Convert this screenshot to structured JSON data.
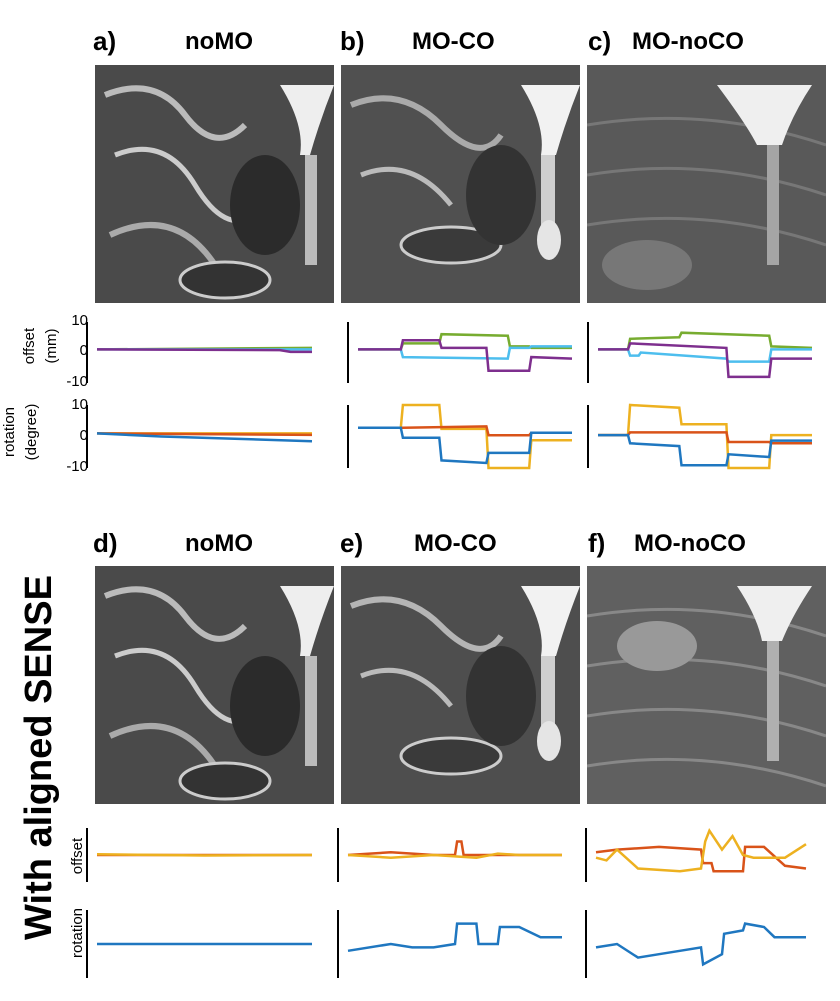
{
  "side_label": "With aligned SENSE",
  "panels": [
    {
      "label": "a)",
      "title": "noMO"
    },
    {
      "label": "b)",
      "title": "MO-CO"
    },
    {
      "label": "c)",
      "title": "MO-noCO"
    },
    {
      "label": "d)",
      "title": "noMO"
    },
    {
      "label": "e)",
      "title": "MO-CO"
    },
    {
      "label": "f)",
      "title": "MO-noCO"
    }
  ],
  "axes": {
    "offset_label": "offset",
    "offset_unit": "(mm)",
    "rotation_label": "rotation",
    "rotation_unit": "(degree)",
    "offset_ticks": [
      "10",
      "0",
      "-10"
    ],
    "rotation_ticks": [
      "10",
      "0",
      "-10"
    ]
  },
  "colors": {
    "blue": "#1f77c0",
    "orange": "#d95319",
    "yellow": "#edb120",
    "purple": "#7e2f8e",
    "green": "#77ac30",
    "cyan": "#4dbeee"
  },
  "chart_data": [
    {
      "type": "line",
      "panel": "a",
      "ylabel": "offset (mm)",
      "ylim": [
        -10,
        10
      ],
      "series": [
        {
          "name": "offset-1",
          "color": "#77ac30",
          "x": [
            0,
            1
          ],
          "y": [
            1,
            1.5
          ]
        },
        {
          "name": "offset-2",
          "color": "#4dbeee",
          "x": [
            0,
            1
          ],
          "y": [
            1,
            1
          ]
        },
        {
          "name": "offset-3",
          "color": "#7e2f8e",
          "x": [
            0,
            0.85,
            0.9,
            1
          ],
          "y": [
            1,
            0.8,
            0.2,
            0.2
          ]
        }
      ]
    },
    {
      "type": "line",
      "panel": "b",
      "ylabel": "offset (mm)",
      "ylim": [
        -10,
        10
      ],
      "series": [
        {
          "name": "offset-1",
          "color": "#77ac30",
          "x": [
            0,
            0.2,
            0.21,
            0.38,
            0.39,
            0.7,
            0.71,
            0.8,
            0.81,
            1
          ],
          "y": [
            1,
            1,
            3,
            3,
            6,
            5.5,
            2,
            2,
            1.5,
            1.5
          ]
        },
        {
          "name": "offset-2",
          "color": "#4dbeee",
          "x": [
            0,
            0.2,
            0.21,
            0.7,
            0.71,
            0.8,
            0.81,
            1
          ],
          "y": [
            1,
            1,
            -1.5,
            -2,
            1.5,
            1.5,
            2,
            2
          ]
        },
        {
          "name": "offset-3",
          "color": "#7e2f8e",
          "x": [
            0,
            0.2,
            0.21,
            0.38,
            0.39,
            0.6,
            0.61,
            0.8,
            0.81,
            1
          ],
          "y": [
            1,
            1,
            4,
            4,
            1.5,
            1.5,
            -6,
            -6,
            -1.5,
            -2
          ]
        }
      ]
    },
    {
      "type": "line",
      "panel": "c",
      "ylabel": "offset (mm)",
      "ylim": [
        -10,
        10
      ],
      "series": [
        {
          "name": "offset-1",
          "color": "#77ac30",
          "x": [
            0,
            0.14,
            0.15,
            0.38,
            0.39,
            0.8,
            0.81,
            1
          ],
          "y": [
            1,
            1,
            4.5,
            5,
            6.5,
            5.5,
            2,
            1.5
          ]
        },
        {
          "name": "offset-2",
          "color": "#4dbeee",
          "x": [
            0,
            0.14,
            0.15,
            0.19,
            0.2,
            0.6,
            0.61,
            0.8,
            0.81,
            1
          ],
          "y": [
            1,
            1,
            -1,
            -1,
            0,
            -2,
            -3,
            -3,
            1,
            1
          ]
        },
        {
          "name": "offset-3",
          "color": "#7e2f8e",
          "x": [
            0,
            0.14,
            0.15,
            0.6,
            0.61,
            0.8,
            0.81,
            1
          ],
          "y": [
            1,
            1,
            3,
            1.5,
            -8,
            -8,
            -2,
            -2
          ]
        }
      ]
    },
    {
      "type": "line",
      "panel": "a",
      "ylabel": "rotation (degree)",
      "ylim": [
        -10,
        10
      ],
      "series": [
        {
          "name": "rotation-1",
          "color": "#edb120",
          "x": [
            0,
            1
          ],
          "y": [
            1,
            1
          ]
        },
        {
          "name": "rotation-2",
          "color": "#d95319",
          "x": [
            0,
            1
          ],
          "y": [
            1,
            0.5
          ]
        },
        {
          "name": "rotation-3",
          "color": "#1f77c0",
          "x": [
            0,
            0.3,
            1
          ],
          "y": [
            1,
            0,
            -1.5
          ]
        }
      ]
    },
    {
      "type": "line",
      "panel": "b",
      "ylabel": "rotation (degree)",
      "ylim": [
        -10,
        10
      ],
      "series": [
        {
          "name": "rotation-1",
          "color": "#edb120",
          "x": [
            0,
            0.2,
            0.21,
            0.38,
            0.39,
            0.6,
            0.61,
            0.8,
            0.81,
            1
          ],
          "y": [
            1,
            1,
            10,
            10,
            0.5,
            0.5,
            -15,
            -15,
            -4,
            -4
          ]
        },
        {
          "name": "rotation-2",
          "color": "#d95319",
          "x": [
            0,
            0.2,
            0.21,
            0.6,
            0.61,
            0.8,
            0.81,
            1
          ],
          "y": [
            1,
            1,
            1,
            1.5,
            -2,
            -2,
            -1,
            -1
          ]
        },
        {
          "name": "rotation-3",
          "color": "#1f77c0",
          "x": [
            0,
            0.2,
            0.21,
            0.38,
            0.39,
            0.6,
            0.61,
            0.8,
            0.81,
            1
          ],
          "y": [
            1,
            1,
            -3,
            -3,
            -12,
            -13,
            -9,
            -9,
            -1,
            -1
          ]
        }
      ]
    },
    {
      "type": "line",
      "panel": "c",
      "ylabel": "rotation (degree)",
      "ylim": [
        -10,
        10
      ],
      "series": [
        {
          "name": "rotation-1",
          "color": "#edb120",
          "x": [
            0,
            0.14,
            0.15,
            0.38,
            0.39,
            0.6,
            0.61,
            0.8,
            0.81,
            1
          ],
          "y": [
            1,
            1,
            12,
            11,
            5,
            5,
            -11,
            -11,
            1,
            1
          ]
        },
        {
          "name": "rotation-2",
          "color": "#d95319",
          "x": [
            0,
            0.14,
            0.15,
            0.6,
            0.61,
            0.8,
            0.81,
            1
          ],
          "y": [
            1,
            1,
            2,
            2,
            -1.5,
            -1.5,
            -2,
            -2
          ]
        },
        {
          "name": "rotation-3",
          "color": "#1f77c0",
          "x": [
            0,
            0.14,
            0.15,
            0.38,
            0.39,
            0.6,
            0.61,
            0.8,
            0.81,
            1
          ],
          "y": [
            1,
            1,
            -2,
            -3,
            -10,
            -10,
            -6,
            -7,
            -1,
            -1
          ]
        }
      ]
    },
    {
      "type": "line",
      "panel": "d",
      "ylabel": "offset",
      "ylim": [
        -10,
        10
      ],
      "series": [
        {
          "name": "offset-orange",
          "color": "#d95319",
          "x": [
            0,
            1
          ],
          "y": [
            0,
            0
          ]
        },
        {
          "name": "offset-yellow",
          "color": "#edb120",
          "x": [
            0,
            0.5,
            1
          ],
          "y": [
            0.3,
            -0.2,
            0
          ]
        }
      ]
    },
    {
      "type": "line",
      "panel": "e",
      "ylabel": "offset",
      "ylim": [
        -10,
        10
      ],
      "series": [
        {
          "name": "offset-orange",
          "color": "#d95319",
          "x": [
            0,
            0.2,
            0.4,
            0.5,
            0.51,
            0.53,
            0.54,
            0.7,
            1
          ],
          "y": [
            0,
            1,
            0,
            0,
            5,
            5,
            0,
            0,
            0
          ]
        },
        {
          "name": "offset-yellow",
          "color": "#edb120",
          "x": [
            0,
            0.2,
            0.4,
            0.6,
            0.7,
            0.8,
            1
          ],
          "y": [
            0,
            -1,
            0,
            -1,
            0.5,
            0,
            0
          ]
        }
      ]
    },
    {
      "type": "line",
      "panel": "f",
      "ylabel": "offset",
      "ylim": [
        -10,
        10
      ],
      "series": [
        {
          "name": "offset-orange",
          "color": "#d95319",
          "x": [
            0,
            0.1,
            0.3,
            0.5,
            0.51,
            0.55,
            0.56,
            0.7,
            0.71,
            0.8,
            0.9,
            1
          ],
          "y": [
            1,
            2,
            3,
            2,
            -3,
            -3,
            -6,
            -6,
            3,
            3,
            -4,
            -5
          ]
        },
        {
          "name": "offset-yellow",
          "color": "#edb120",
          "x": [
            0,
            0.05,
            0.1,
            0.2,
            0.4,
            0.5,
            0.52,
            0.54,
            0.6,
            0.65,
            0.7,
            0.75,
            0.9,
            1
          ],
          "y": [
            -1,
            -2,
            2,
            -5,
            -6,
            -5,
            5,
            9,
            2,
            7,
            0,
            -1,
            -1,
            4
          ]
        }
      ]
    },
    {
      "type": "line",
      "panel": "d",
      "ylabel": "rotation",
      "ylim": [
        -10,
        10
      ],
      "series": [
        {
          "name": "rotation-blue",
          "color": "#1f77c0",
          "x": [
            0,
            1
          ],
          "y": [
            0,
            0
          ]
        }
      ]
    },
    {
      "type": "line",
      "panel": "e",
      "ylabel": "rotation",
      "ylim": [
        -10,
        10
      ],
      "series": [
        {
          "name": "rotation-blue",
          "color": "#1f77c0",
          "x": [
            0,
            0.2,
            0.3,
            0.4,
            0.5,
            0.51,
            0.6,
            0.61,
            0.7,
            0.71,
            0.8,
            0.9,
            1
          ],
          "y": [
            -2,
            0,
            -1,
            -1,
            0,
            6,
            6,
            0,
            0,
            5,
            5,
            2,
            2
          ]
        }
      ]
    },
    {
      "type": "line",
      "panel": "f",
      "ylabel": "rotation",
      "ylim": [
        -10,
        10
      ],
      "series": [
        {
          "name": "rotation-blue",
          "color": "#1f77c0",
          "x": [
            0,
            0.1,
            0.2,
            0.3,
            0.4,
            0.5,
            0.51,
            0.6,
            0.61,
            0.7,
            0.71,
            0.8,
            0.85,
            0.9,
            1
          ],
          "y": [
            -1,
            0,
            -4,
            -3,
            -2,
            -1,
            -6,
            -3,
            3,
            4,
            6,
            5,
            2,
            2,
            2
          ]
        }
      ]
    }
  ]
}
